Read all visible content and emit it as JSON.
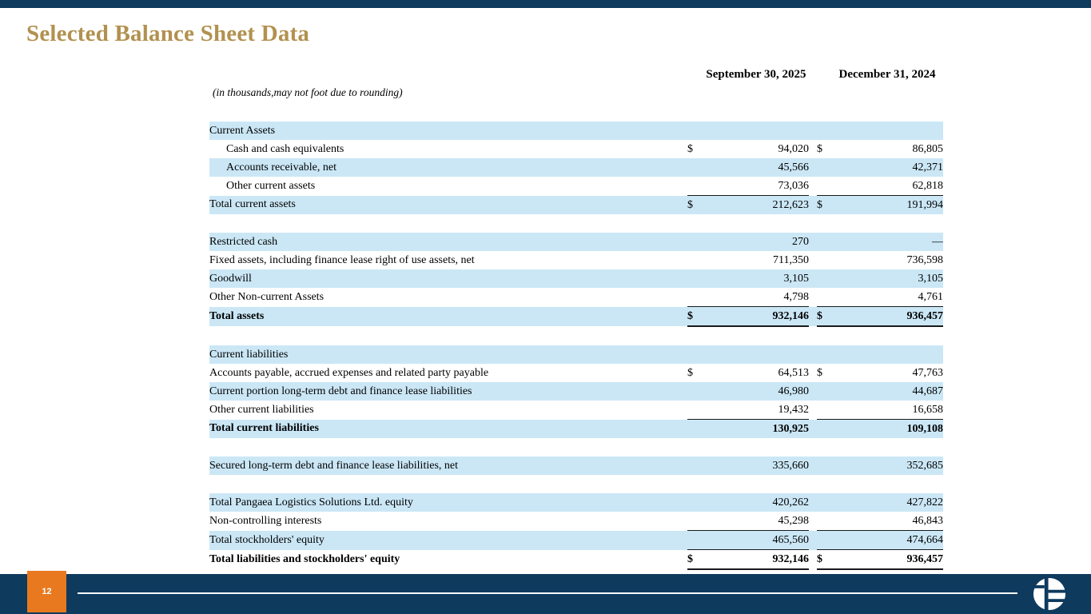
{
  "slide": {
    "title": "Selected Balance Sheet Data",
    "page_number": "12"
  },
  "table": {
    "note": "(in thousands,may not foot due to rounding)",
    "columns": [
      "September 30, 2025",
      "December 31, 2024"
    ],
    "rows": [
      {
        "label": "Current Assets",
        "shade": true
      },
      {
        "label": "Cash and cash equivalents",
        "indent": true,
        "d1": "$",
        "v1": "94,020",
        "d2": "$",
        "v2": "86,805"
      },
      {
        "label": "Accounts receivable, net",
        "indent": true,
        "shade": true,
        "v1": "45,566",
        "v2": "42,371"
      },
      {
        "label": "Other current assets",
        "indent": true,
        "v1": "73,036",
        "v2": "62,818",
        "rule": "thin"
      },
      {
        "label": "Total current assets",
        "shade": true,
        "d1": "$",
        "v1": "212,623",
        "d2": "$",
        "v2": "191,994"
      },
      {
        "spacer": true
      },
      {
        "label": "Restricted cash",
        "shade": true,
        "v1": "270",
        "v2": "—"
      },
      {
        "label": "Fixed assets, including finance lease right of use assets, net",
        "v1": "711,350",
        "v2": "736,598"
      },
      {
        "label": "Goodwill",
        "shade": true,
        "v1": "3,105",
        "v2": "3,105"
      },
      {
        "label": "Other Non-current Assets",
        "v1": "4,798",
        "v2": "4,761",
        "rule": "thin"
      },
      {
        "label": "Total assets",
        "bold": true,
        "shade": true,
        "d1": "$",
        "v1": "932,146",
        "d2": "$",
        "v2": "936,457",
        "rule": "thick"
      },
      {
        "spacer": true
      },
      {
        "label": "Current liabilities",
        "shade": true
      },
      {
        "label": "Accounts payable, accrued expenses and related party payable",
        "d1": "$",
        "v1": "64,513",
        "d2": "$",
        "v2": "47,763"
      },
      {
        "label": "Current portion long-term debt and finance lease liabilities",
        "shade": true,
        "v1": "46,980",
        "v2": "44,687"
      },
      {
        "label": "Other current liabilities",
        "v1": "19,432",
        "v2": "16,658",
        "rule": "thin"
      },
      {
        "label": "Total current liabilities",
        "bold": true,
        "shade": true,
        "v1": "130,925",
        "v2": "109,108"
      },
      {
        "spacer": true
      },
      {
        "label": "Secured long-term debt and finance lease liabilities, net",
        "shade": true,
        "v1": "335,660",
        "v2": "352,685"
      },
      {
        "spacer": true
      },
      {
        "label": "Total Pangaea Logistics Solutions Ltd. equity",
        "shade": true,
        "v1": "420,262",
        "v2": "427,822"
      },
      {
        "label": "Non-controlling interests",
        "v1": "45,298",
        "v2": "46,843",
        "rule": "thin"
      },
      {
        "label": "Total stockholders' equity",
        "shade": true,
        "v1": "465,560",
        "v2": "474,664",
        "rule": "thin"
      },
      {
        "label": "Total liabilities and stockholders' equity",
        "bold": true,
        "d1": "$",
        "v1": "932,146",
        "d2": "$",
        "v2": "936,457",
        "rule": "thick"
      }
    ]
  },
  "footer": {
    "logo": "pangaea-globe-logo"
  },
  "colors": {
    "navy": "#0e3a5e",
    "orange": "#e8791f",
    "title_gold": "#b2914f",
    "row_blue": "#cbe7f6"
  }
}
